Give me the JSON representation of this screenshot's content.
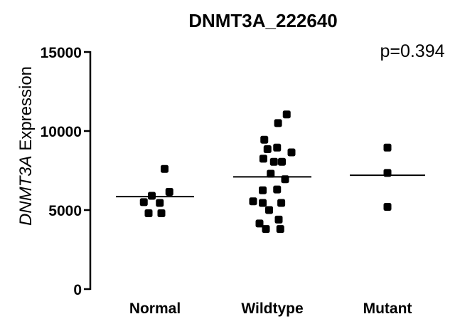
{
  "chart_data": {
    "type": "scatter",
    "title": "DNMT3A_222640",
    "ylabel_italic": "DNMT3A",
    "ylabel_rest": " Expression",
    "annotation": "p=0.394",
    "categories": [
      "Normal",
      "Wildtype",
      "Mutant"
    ],
    "ylim": [
      0,
      15000
    ],
    "yticks": [
      0,
      5000,
      10000,
      15000
    ],
    "ytick_labels": [
      "0",
      "5000",
      "10000",
      "15000"
    ],
    "grid": false,
    "series": [
      {
        "category": "Normal",
        "mean": 5850,
        "points": [
          {
            "offset": 0.3,
            "y": 7600
          },
          {
            "offset": -0.1,
            "y": 5900
          },
          {
            "offset": 0.45,
            "y": 6150
          },
          {
            "offset": 0.15,
            "y": 5450
          },
          {
            "offset": -0.35,
            "y": 5500
          },
          {
            "offset": -0.2,
            "y": 4800
          },
          {
            "offset": 0.2,
            "y": 4800
          }
        ]
      },
      {
        "category": "Wildtype",
        "mean": 7100,
        "points": [
          {
            "offset": 0.45,
            "y": 11050
          },
          {
            "offset": 0.18,
            "y": 10500
          },
          {
            "offset": -0.25,
            "y": 9450
          },
          {
            "offset": 0.15,
            "y": 8950
          },
          {
            "offset": -0.15,
            "y": 8850
          },
          {
            "offset": 0.6,
            "y": 8650
          },
          {
            "offset": -0.28,
            "y": 8250
          },
          {
            "offset": 0.05,
            "y": 8050
          },
          {
            "offset": 0.3,
            "y": 8050
          },
          {
            "offset": -0.05,
            "y": 7300
          },
          {
            "offset": 0.4,
            "y": 6950
          },
          {
            "offset": 0.15,
            "y": 6300
          },
          {
            "offset": -0.3,
            "y": 6250
          },
          {
            "offset": -0.6,
            "y": 5550
          },
          {
            "offset": -0.3,
            "y": 5450
          },
          {
            "offset": 0.28,
            "y": 5450
          },
          {
            "offset": -0.1,
            "y": 5000
          },
          {
            "offset": 0.2,
            "y": 4400
          },
          {
            "offset": -0.4,
            "y": 4150
          },
          {
            "offset": -0.2,
            "y": 3800
          },
          {
            "offset": 0.25,
            "y": 3800
          }
        ]
      },
      {
        "category": "Mutant",
        "mean": 7200,
        "points": [
          {
            "offset": 0.0,
            "y": 8950
          },
          {
            "offset": 0.0,
            "y": 7350
          },
          {
            "offset": 0.0,
            "y": 5200
          }
        ]
      }
    ]
  }
}
